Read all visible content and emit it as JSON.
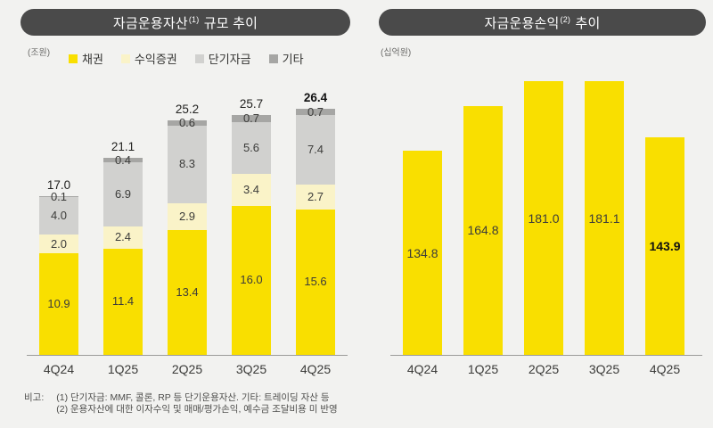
{
  "page": {
    "background_color": "#f2f2f0",
    "accent_yellow": "#f9df00",
    "title_pill_color": "#4a4a4a"
  },
  "panels": {
    "left": {
      "title": {
        "main": "자금운용자산",
        "sup": "(1)",
        "rest": " 규모 추이"
      },
      "unit_label": "(조원)"
    },
    "right": {
      "title": {
        "main": "자금운용손익",
        "sup": "(2)",
        "rest": " 추이"
      },
      "unit_label": "(십억원)"
    }
  },
  "chart_data": [
    {
      "type": "bar",
      "variant": "stacked",
      "title": "자금운용자산(1) 규모 추이",
      "unit": "조원",
      "legend_position": "top",
      "grid": false,
      "ylim": [
        0,
        26.4
      ],
      "categories": [
        "4Q24",
        "1Q25",
        "2Q25",
        "3Q25",
        "4Q25"
      ],
      "series": [
        {
          "key": "bonds",
          "name": "채권",
          "color": "#f9df00",
          "values": [
            10.9,
            11.4,
            13.4,
            16.0,
            15.6
          ],
          "labels": [
            "10.9",
            "11.4",
            "13.4",
            "16.0",
            "15.6"
          ]
        },
        {
          "key": "beneficiary-certificates",
          "name": "수익증권",
          "color": "#faf3c8",
          "values": [
            2.0,
            2.4,
            2.9,
            3.4,
            2.7
          ],
          "labels": [
            "2.0",
            "2.4",
            "2.9",
            "3.4",
            "2.7"
          ]
        },
        {
          "key": "short-term-funds",
          "name": "단기자금",
          "color": "#d1d1cf",
          "values": [
            4.0,
            6.9,
            8.3,
            5.6,
            7.4
          ],
          "labels": [
            "4.0",
            "6.9",
            "8.3",
            "5.6",
            "7.4"
          ]
        },
        {
          "key": "others",
          "name": "기타",
          "color": "#a6a6a4",
          "values": [
            0.1,
            0.4,
            0.6,
            0.7,
            0.7
          ],
          "labels": [
            "0.1",
            "0.4",
            "0.6",
            "0.7",
            "0.7"
          ]
        }
      ],
      "totals": {
        "values": [
          17.0,
          21.1,
          25.2,
          25.7,
          26.4
        ],
        "labels": [
          "17.0",
          "21.1",
          "25.2",
          "25.7",
          "26.4"
        ]
      },
      "emphasize_last": true
    },
    {
      "type": "bar",
      "variant": "simple",
      "title": "자금운용손익(2) 추이",
      "unit": "십억원",
      "grid": false,
      "ylim": [
        0,
        181.1
      ],
      "bar_color": "#f9df00",
      "categories": [
        "4Q24",
        "1Q25",
        "2Q25",
        "3Q25",
        "4Q25"
      ],
      "values": [
        134.8,
        164.8,
        181.0,
        181.1,
        143.9
      ],
      "labels": [
        "134.8",
        "164.8",
        "181.0",
        "181.1",
        "143.9"
      ],
      "emphasize_last": true
    }
  ],
  "footnote": {
    "label": "비고:",
    "line1": "(1) 단기자금: MMF, 콜론, RP 등 단기운용자산. 기타: 트레이딩 자산 등",
    "line2": "(2) 운용자산에 대한 이자수익 및 매매/평가손익, 예수금 조달비용 미 반영"
  }
}
